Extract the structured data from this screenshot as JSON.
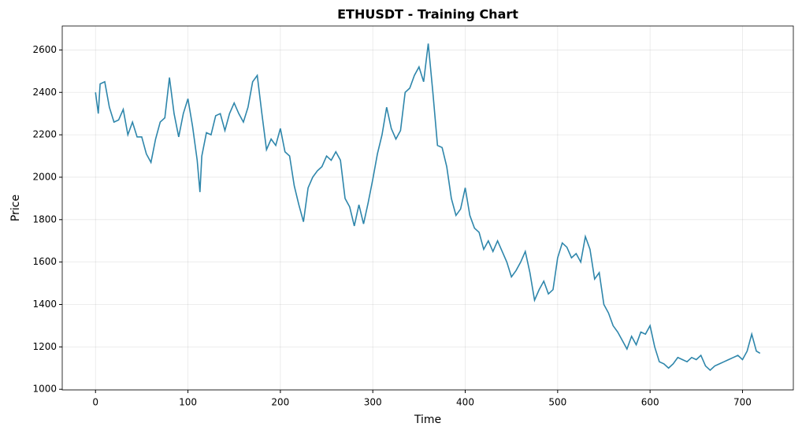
{
  "chart_data": {
    "type": "line",
    "title": "ETHUSDT - Training Chart",
    "x_label": "Time",
    "y_label": "Price",
    "x": [
      0,
      3,
      5,
      10,
      15,
      20,
      25,
      30,
      35,
      40,
      45,
      50,
      55,
      60,
      65,
      70,
      75,
      80,
      85,
      90,
      95,
      100,
      105,
      110,
      113,
      115,
      120,
      125,
      130,
      135,
      140,
      145,
      150,
      155,
      160,
      165,
      170,
      175,
      180,
      185,
      190,
      195,
      200,
      205,
      210,
      215,
      220,
      225,
      230,
      235,
      240,
      245,
      250,
      255,
      260,
      265,
      270,
      275,
      280,
      285,
      290,
      295,
      300,
      305,
      310,
      315,
      320,
      325,
      330,
      335,
      340,
      345,
      350,
      355,
      360,
      365,
      370,
      375,
      380,
      385,
      390,
      395,
      400,
      405,
      410,
      415,
      420,
      425,
      430,
      435,
      440,
      445,
      450,
      455,
      460,
      465,
      470,
      475,
      480,
      485,
      490,
      495,
      500,
      505,
      510,
      515,
      520,
      525,
      530,
      535,
      540,
      545,
      550,
      555,
      560,
      565,
      570,
      575,
      580,
      585,
      590,
      595,
      600,
      605,
      610,
      615,
      620,
      625,
      630,
      635,
      640,
      645,
      650,
      655,
      660,
      665,
      670,
      675,
      680,
      685,
      690,
      695,
      700,
      705,
      710,
      715,
      719
    ],
    "series": [
      {
        "name": "ETHUSDT",
        "color": "#2e86ab",
        "values": [
          2400,
          2300,
          2440,
          2450,
          2330,
          2260,
          2270,
          2320,
          2200,
          2260,
          2190,
          2190,
          2110,
          2070,
          2180,
          2260,
          2280,
          2470,
          2300,
          2190,
          2300,
          2370,
          2240,
          2080,
          1930,
          2100,
          2210,
          2200,
          2290,
          2300,
          2220,
          2300,
          2350,
          2300,
          2260,
          2330,
          2450,
          2480,
          2300,
          2130,
          2180,
          2150,
          2230,
          2120,
          2100,
          1960,
          1870,
          1790,
          1950,
          2000,
          2030,
          2050,
          2100,
          2080,
          2120,
          2080,
          1900,
          1860,
          1770,
          1870,
          1780,
          1880,
          1990,
          2110,
          2200,
          2330,
          2230,
          2180,
          2220,
          2400,
          2420,
          2480,
          2520,
          2450,
          2630,
          2400,
          2150,
          2140,
          2050,
          1900,
          1820,
          1850,
          1950,
          1820,
          1760,
          1740,
          1660,
          1700,
          1650,
          1700,
          1650,
          1600,
          1530,
          1560,
          1600,
          1650,
          1550,
          1420,
          1470,
          1510,
          1450,
          1470,
          1620,
          1690,
          1670,
          1620,
          1640,
          1600,
          1720,
          1660,
          1520,
          1550,
          1400,
          1360,
          1300,
          1270,
          1230,
          1190,
          1250,
          1210,
          1270,
          1260,
          1300,
          1200,
          1130,
          1120,
          1100,
          1120,
          1150,
          1140,
          1130,
          1150,
          1140,
          1160,
          1110,
          1090,
          1110,
          1120,
          1130,
          1140,
          1150,
          1160,
          1140,
          1180,
          1260,
          1180,
          1170
        ]
      }
    ],
    "xlim": [
      -36,
      755
    ],
    "ylim": [
      997,
      2713
    ],
    "xticks": [
      0,
      100,
      200,
      300,
      400,
      500,
      600,
      700
    ],
    "yticks": [
      1000,
      1200,
      1400,
      1600,
      1800,
      2000,
      2200,
      2400,
      2600
    ],
    "grid": true
  }
}
